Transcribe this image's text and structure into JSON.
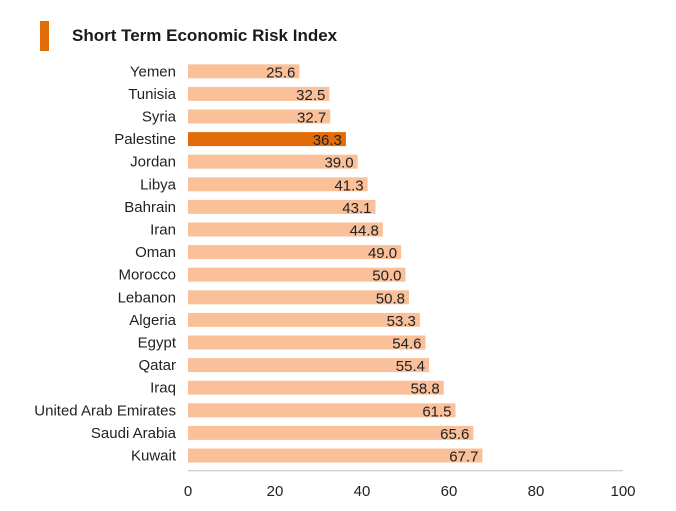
{
  "title": "Short Term Economic Risk Index",
  "colors": {
    "bar": "#F9C09A",
    "highlight": "#E36C0A",
    "accent": "#E36C0A",
    "axis": "#bfbfbf"
  },
  "chart_data": {
    "type": "bar",
    "orientation": "horizontal",
    "title": "Short Term Economic Risk Index",
    "xlabel": "",
    "ylabel": "",
    "xlim": [
      0,
      100
    ],
    "xticks": [
      0,
      20,
      40,
      60,
      80,
      100
    ],
    "xtick_labels": [
      "0",
      "20",
      "40",
      "60",
      "80",
      "100"
    ],
    "grid": false,
    "legend": "none",
    "highlight": "Palestine",
    "categories": [
      "Yemen",
      "Tunisia",
      "Syria",
      "Palestine",
      "Jordan",
      "Libya",
      "Bahrain",
      "Iran",
      "Oman",
      "Morocco",
      "Lebanon",
      "Algeria",
      "Egypt",
      "Qatar",
      "Iraq",
      "United Arab Emirates",
      "Saudi Arabia",
      "Kuwait"
    ],
    "values": [
      25.6,
      32.5,
      32.7,
      36.3,
      39.0,
      41.3,
      43.1,
      44.8,
      49.0,
      50.0,
      50.8,
      53.3,
      54.6,
      55.4,
      58.8,
      61.5,
      65.6,
      67.7
    ],
    "value_labels": [
      "25.6",
      "32.5",
      "32.7",
      "36.3",
      "39.0",
      "41.3",
      "43.1",
      "44.8",
      "49.0",
      "50.0",
      "50.8",
      "53.3",
      "54.6",
      "55.4",
      "58.8",
      "61.5",
      "65.6",
      "67.7"
    ]
  }
}
